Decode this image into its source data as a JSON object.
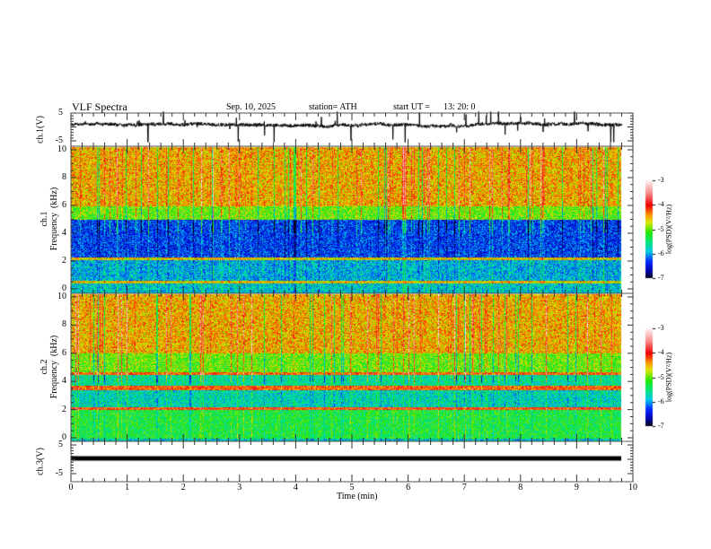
{
  "header": {
    "title": "VLF  Spectra",
    "date": "Sep. 10, 2025",
    "station": "station= ATH",
    "start_label": "start  UT  =",
    "start_time": "13: 20: 0"
  },
  "chart_data": [
    {
      "type": "line",
      "name": "ch1-waveform",
      "ylabel": "ch.1(V)",
      "ylim": [
        -5,
        5
      ],
      "yticks": [
        "5",
        "-5"
      ],
      "xlim": [
        0,
        10
      ],
      "data_extent_min": 9.8,
      "baseline_v": 1.0,
      "spike_range_v": [
        -5,
        5
      ],
      "color": "#000000"
    },
    {
      "type": "heatmap",
      "name": "ch1-spectrogram",
      "ylabel": "ch.1\nFrequency  (kHz)",
      "ylim": [
        0,
        10
      ],
      "yticks": [
        "10",
        "8",
        "6",
        "4",
        "2",
        "0"
      ],
      "xlim": [
        0,
        10
      ],
      "colorbar": {
        "label": "log(PSD)(V²/Hz)",
        "range": [
          -7,
          -3
        ],
        "ticks": [
          "-3",
          "-4",
          "-5",
          "-6",
          "-7"
        ]
      },
      "band_profile_logpsd": [
        {
          "f_khz": [
            6,
            10
          ],
          "value": -4.5
        },
        {
          "f_khz": [
            5,
            6
          ],
          "value": -5.0
        },
        {
          "f_khz": [
            2.3,
            5
          ],
          "value": -6.3
        },
        {
          "f_khz": [
            2.1,
            2.3
          ],
          "value": -4.6
        },
        {
          "f_khz": [
            0.6,
            2.1
          ],
          "value": -5.9
        },
        {
          "f_khz": [
            0.4,
            0.6
          ],
          "value": -4.6
        },
        {
          "f_khz": [
            0,
            0.4
          ],
          "value": -5.8
        }
      ]
    },
    {
      "type": "heatmap",
      "name": "ch2-spectrogram",
      "ylabel": "ch.2\nFrequency  (kHz)",
      "ylim": [
        0,
        10
      ],
      "yticks": [
        "10",
        "8",
        "6",
        "4",
        "2",
        "0"
      ],
      "xlim": [
        0,
        10
      ],
      "colorbar": {
        "label": "log(PSD)(V²/Hz)",
        "range": [
          -7,
          -3
        ],
        "ticks": [
          "-3",
          "-4",
          "-5",
          "-6",
          "-7"
        ]
      },
      "band_profile_logpsd": [
        {
          "f_khz": [
            6,
            10
          ],
          "value": -4.5
        },
        {
          "f_khz": [
            4.7,
            6
          ],
          "value": -5.0
        },
        {
          "f_khz": [
            4.5,
            4.7
          ],
          "value": -4.2
        },
        {
          "f_khz": [
            3.7,
            4.5
          ],
          "value": -5.6
        },
        {
          "f_khz": [
            3.4,
            3.7
          ],
          "value": -4.2
        },
        {
          "f_khz": [
            2.2,
            3.4
          ],
          "value": -5.7
        },
        {
          "f_khz": [
            2.0,
            2.2
          ],
          "value": -4.1
        },
        {
          "f_khz": [
            0,
            2.0
          ],
          "value": -5.3
        }
      ]
    },
    {
      "type": "line",
      "name": "ch3-waveform",
      "ylabel": "ch.3(V)",
      "ylim": [
        -5,
        5
      ],
      "yticks": [
        "5",
        "-5"
      ],
      "xlim": [
        0,
        10
      ],
      "data_extent_min": 9.8,
      "baseline_v": 0.3,
      "color": "#000000"
    }
  ],
  "xaxis": {
    "label": "Time  (min)",
    "ticks": [
      "0",
      "1",
      "2",
      "3",
      "4",
      "5",
      "6",
      "7",
      "8",
      "9",
      "10"
    ]
  }
}
